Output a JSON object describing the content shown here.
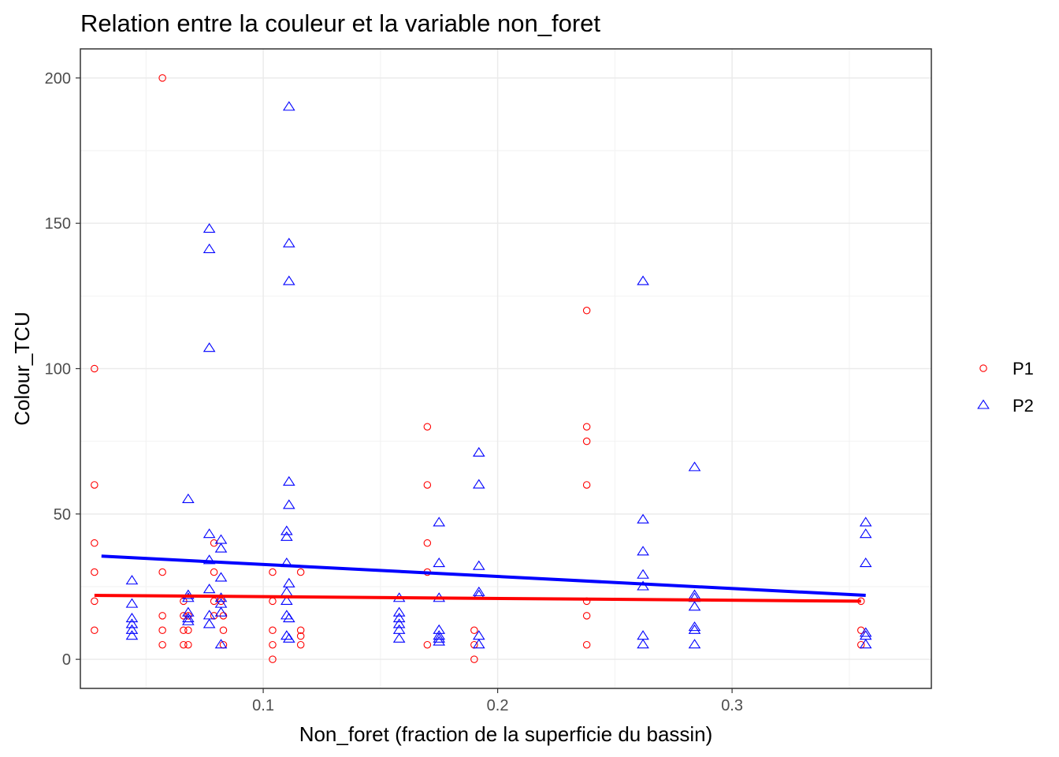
{
  "chart_data": {
    "type": "scatter",
    "title": "Relation entre la couleur et la variable non_foret",
    "xlabel": "Non_foret (fraction de la superficie du bassin)",
    "ylabel": "Colour_TCU",
    "xlim": [
      0.022,
      0.385
    ],
    "ylim": [
      -10,
      210
    ],
    "x_ticks": [
      0.1,
      0.2,
      0.3
    ],
    "x_tick_labels": [
      "0.1",
      "0.2",
      "0.3"
    ],
    "y_ticks": [
      0,
      50,
      100,
      150,
      200
    ],
    "y_tick_labels": [
      "0",
      "50",
      "100",
      "150",
      "200"
    ],
    "grid": true,
    "legend_position": "right",
    "series": [
      {
        "name": "P1",
        "color": "#ff0000",
        "marker": "circle",
        "points": [
          [
            0.028,
            100
          ],
          [
            0.028,
            60
          ],
          [
            0.028,
            40
          ],
          [
            0.028,
            30
          ],
          [
            0.028,
            20
          ],
          [
            0.028,
            10
          ],
          [
            0.057,
            200
          ],
          [
            0.057,
            30
          ],
          [
            0.057,
            15
          ],
          [
            0.057,
            10
          ],
          [
            0.057,
            5
          ],
          [
            0.066,
            20
          ],
          [
            0.066,
            15
          ],
          [
            0.066,
            10
          ],
          [
            0.066,
            5
          ],
          [
            0.068,
            15
          ],
          [
            0.068,
            10
          ],
          [
            0.068,
            5
          ],
          [
            0.079,
            40
          ],
          [
            0.079,
            30
          ],
          [
            0.079,
            20
          ],
          [
            0.079,
            15
          ],
          [
            0.082,
            20
          ],
          [
            0.083,
            15
          ],
          [
            0.083,
            10
          ],
          [
            0.083,
            5
          ],
          [
            0.104,
            30
          ],
          [
            0.104,
            20
          ],
          [
            0.104,
            10
          ],
          [
            0.104,
            5
          ],
          [
            0.104,
            0
          ],
          [
            0.116,
            30
          ],
          [
            0.116,
            10
          ],
          [
            0.116,
            8
          ],
          [
            0.116,
            5
          ],
          [
            0.17,
            80
          ],
          [
            0.17,
            60
          ],
          [
            0.17,
            40
          ],
          [
            0.17,
            30
          ],
          [
            0.17,
            5
          ],
          [
            0.19,
            10
          ],
          [
            0.19,
            5
          ],
          [
            0.19,
            0
          ],
          [
            0.238,
            120
          ],
          [
            0.238,
            80
          ],
          [
            0.238,
            75
          ],
          [
            0.238,
            60
          ],
          [
            0.238,
            20
          ],
          [
            0.238,
            15
          ],
          [
            0.238,
            5
          ],
          [
            0.355,
            20
          ],
          [
            0.355,
            10
          ],
          [
            0.355,
            5
          ]
        ],
        "trend": {
          "x": [
            0.028,
            0.355
          ],
          "y": [
            22,
            20
          ]
        }
      },
      {
        "name": "P2",
        "color": "#0000ff",
        "marker": "triangle",
        "points": [
          [
            0.044,
            27
          ],
          [
            0.044,
            19
          ],
          [
            0.044,
            14
          ],
          [
            0.044,
            12
          ],
          [
            0.044,
            10
          ],
          [
            0.044,
            8
          ],
          [
            0.068,
            55
          ],
          [
            0.068,
            22
          ],
          [
            0.068,
            21
          ],
          [
            0.068,
            16
          ],
          [
            0.068,
            14
          ],
          [
            0.068,
            13
          ],
          [
            0.077,
            148
          ],
          [
            0.077,
            141
          ],
          [
            0.077,
            107
          ],
          [
            0.077,
            43
          ],
          [
            0.077,
            34
          ],
          [
            0.077,
            24
          ],
          [
            0.077,
            15
          ],
          [
            0.077,
            12
          ],
          [
            0.082,
            41
          ],
          [
            0.082,
            38
          ],
          [
            0.082,
            28
          ],
          [
            0.082,
            21
          ],
          [
            0.082,
            19
          ],
          [
            0.082,
            16
          ],
          [
            0.082,
            5
          ],
          [
            0.111,
            190
          ],
          [
            0.111,
            143
          ],
          [
            0.111,
            130
          ],
          [
            0.111,
            61
          ],
          [
            0.111,
            53
          ],
          [
            0.11,
            44
          ],
          [
            0.11,
            42
          ],
          [
            0.11,
            33
          ],
          [
            0.111,
            26
          ],
          [
            0.11,
            23
          ],
          [
            0.11,
            20
          ],
          [
            0.11,
            15
          ],
          [
            0.111,
            14
          ],
          [
            0.11,
            8
          ],
          [
            0.111,
            7
          ],
          [
            0.158,
            21
          ],
          [
            0.158,
            16
          ],
          [
            0.158,
            14
          ],
          [
            0.158,
            12
          ],
          [
            0.158,
            10
          ],
          [
            0.158,
            7
          ],
          [
            0.175,
            47
          ],
          [
            0.175,
            33
          ],
          [
            0.175,
            21
          ],
          [
            0.175,
            10
          ],
          [
            0.175,
            8
          ],
          [
            0.175,
            7
          ],
          [
            0.175,
            6
          ],
          [
            0.192,
            71
          ],
          [
            0.192,
            60
          ],
          [
            0.192,
            32
          ],
          [
            0.192,
            23
          ],
          [
            0.192,
            22
          ],
          [
            0.192,
            8
          ],
          [
            0.192,
            5
          ],
          [
            0.262,
            130
          ],
          [
            0.262,
            48
          ],
          [
            0.262,
            37
          ],
          [
            0.262,
            29
          ],
          [
            0.262,
            25
          ],
          [
            0.262,
            8
          ],
          [
            0.262,
            5
          ],
          [
            0.284,
            66
          ],
          [
            0.284,
            22
          ],
          [
            0.284,
            21
          ],
          [
            0.284,
            18
          ],
          [
            0.284,
            11
          ],
          [
            0.284,
            10
          ],
          [
            0.284,
            5
          ],
          [
            0.357,
            47
          ],
          [
            0.357,
            43
          ],
          [
            0.357,
            33
          ],
          [
            0.357,
            9
          ],
          [
            0.357,
            8
          ],
          [
            0.357,
            5
          ]
        ],
        "trend": {
          "x": [
            0.031,
            0.357
          ],
          "y": [
            35.5,
            22
          ]
        }
      }
    ]
  }
}
